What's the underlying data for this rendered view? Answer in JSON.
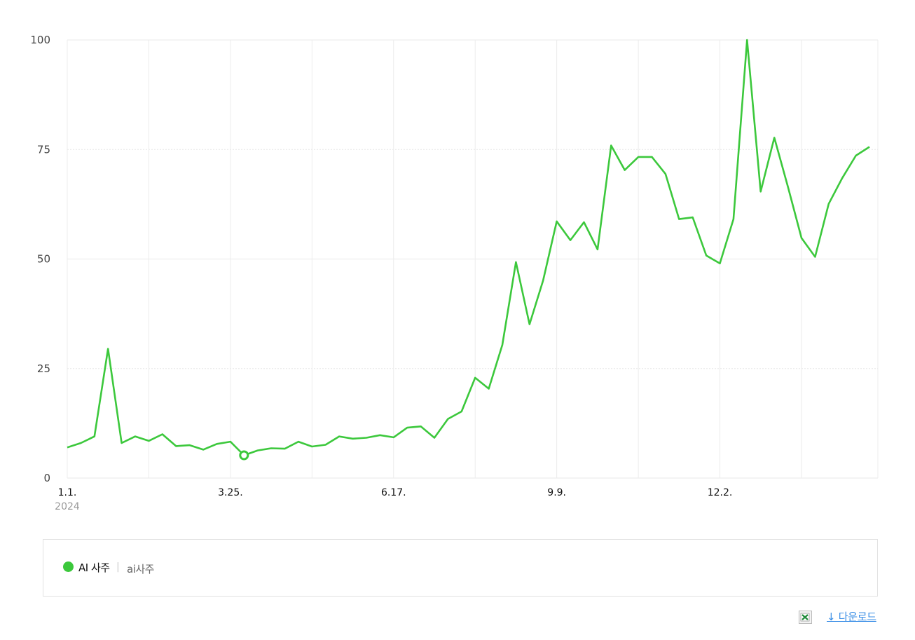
{
  "chart_data": {
    "type": "line",
    "x_start": "1.1.",
    "x_start_year": "2024",
    "x_tick_labels": [
      "1.1.",
      "3.25.",
      "6.17.",
      "9.9.",
      "12.2."
    ],
    "y_ticks": [
      "0",
      "25",
      "50",
      "75",
      "100"
    ],
    "ylim": [
      0,
      100
    ],
    "grid": true,
    "series": [
      {
        "name": "AI 사주",
        "color": "#3cc83c",
        "values": [
          7,
          8,
          9.5,
          29.5,
          8,
          9.5,
          8.5,
          10,
          7.3,
          7.5,
          6.5,
          7.8,
          8.3,
          5.2,
          6.3,
          6.8,
          6.7,
          8.3,
          7.2,
          7.6,
          9.5,
          9,
          9.2,
          9.8,
          9.3,
          11.5,
          11.8,
          9.2,
          13.5,
          15.2,
          22.9,
          20.4,
          30.4,
          49.3,
          35.1,
          45.1,
          58.6,
          54.3,
          58.4,
          52.2,
          75.9,
          70.3,
          73.3,
          73.3,
          69.4,
          59.1,
          59.5,
          50.8,
          49,
          59.1,
          100,
          65.4,
          77.7,
          66.5,
          54.8,
          50.5,
          62.6,
          68.5,
          73.6,
          75.6
        ]
      }
    ],
    "highlight_point_index": 13
  },
  "legend": {
    "series_name": "AI 사주",
    "separator": "|",
    "keyword": "ai사주",
    "dot_color": "#3cc83c"
  },
  "footer": {
    "download_label": "↓ 다운로드",
    "excel_icon": "excel-icon",
    "link_color": "#3a8ee6"
  }
}
